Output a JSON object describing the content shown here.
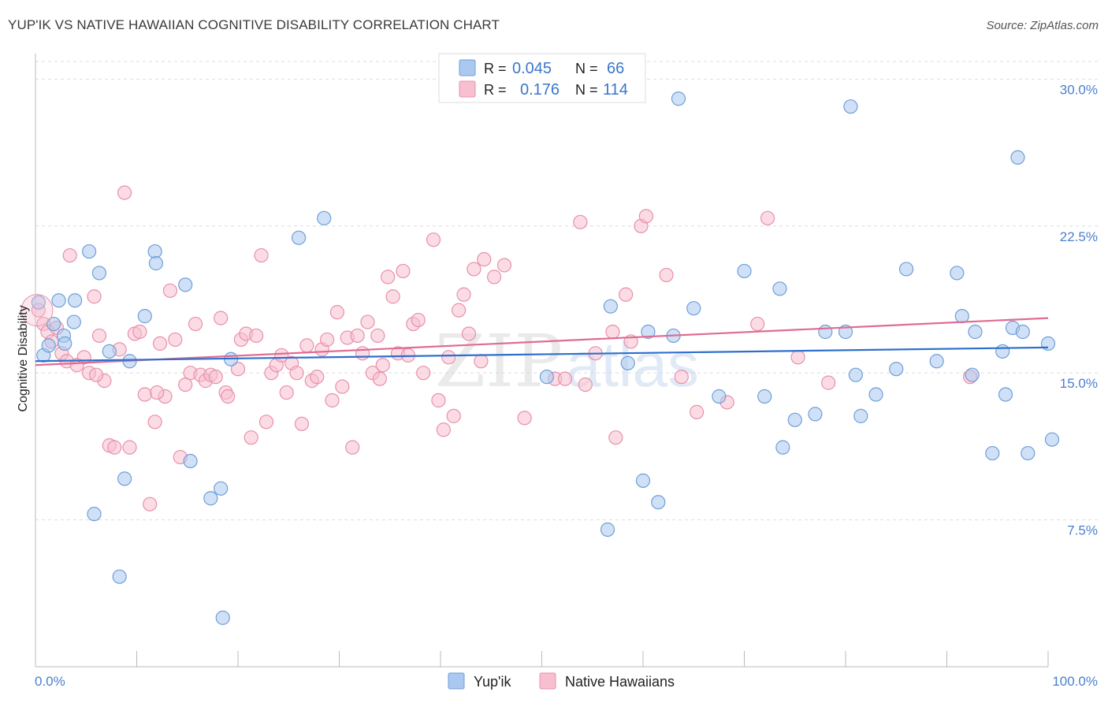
{
  "header": {
    "title": "YUP'IK VS NATIVE HAWAIIAN COGNITIVE DISABILITY CORRELATION CHART",
    "source": "Source: ZipAtlas.com"
  },
  "watermark": {
    "zip": "ZIP",
    "atlas": "atlas"
  },
  "legend": {
    "r_label": "R =",
    "n_label": "N =",
    "rows": [
      {
        "r": "0.045",
        "n": "66"
      },
      {
        "r": "0.176",
        "n": "114"
      }
    ]
  },
  "colors": {
    "yupik_fill": "#aac8f0",
    "yupik_stroke": "#6f9fd8",
    "yupik_line": "#2f6fcc",
    "hawaiian_fill": "#f7bfd0",
    "hawaiian_stroke": "#e890ab",
    "hawaiian_line": "#e06b93",
    "tick_text": "#4a7fd0",
    "grid": "#dddddd"
  },
  "chart_data": {
    "type": "scatter",
    "xlabel": "",
    "ylabel": "Cognitive Disability",
    "xlim": [
      0,
      100
    ],
    "ylim": [
      0,
      30.9
    ],
    "y_ticks": [
      7.5,
      15.0,
      22.5,
      30.0
    ],
    "y_tick_labels": [
      "7.5%",
      "15.0%",
      "22.5%",
      "30.0%"
    ],
    "x_tick_labels": [
      "0.0%",
      "100.0%"
    ],
    "grid": true,
    "legend_position": "top-center",
    "series": [
      {
        "name": "Yup'ik",
        "trend": {
          "x": [
            0,
            100
          ],
          "y": [
            15.6,
            16.3
          ]
        },
        "points": [
          [
            0.3,
            18.6
          ],
          [
            0.8,
            15.9
          ],
          [
            1.3,
            16.4
          ],
          [
            1.8,
            17.5
          ],
          [
            2.3,
            18.7
          ],
          [
            2.8,
            16.9
          ],
          [
            2.9,
            16.5
          ],
          [
            3.8,
            17.6
          ],
          [
            3.9,
            18.7
          ],
          [
            5.3,
            21.2
          ],
          [
            5.8,
            7.8
          ],
          [
            6.3,
            20.1
          ],
          [
            7.3,
            16.1
          ],
          [
            8.3,
            4.6
          ],
          [
            8.8,
            9.6
          ],
          [
            9.3,
            15.6
          ],
          [
            10.8,
            17.9
          ],
          [
            11.8,
            21.2
          ],
          [
            11.9,
            20.6
          ],
          [
            14.8,
            19.5
          ],
          [
            15.3,
            10.5
          ],
          [
            17.3,
            8.6
          ],
          [
            18.3,
            9.1
          ],
          [
            18.5,
            2.5
          ],
          [
            19.3,
            15.7
          ],
          [
            26.0,
            21.9
          ],
          [
            28.5,
            22.9
          ],
          [
            50.5,
            14.8
          ],
          [
            56.5,
            7.0
          ],
          [
            56.8,
            18.4
          ],
          [
            58.5,
            15.5
          ],
          [
            60.0,
            9.5
          ],
          [
            60.5,
            17.1
          ],
          [
            61.5,
            8.4
          ],
          [
            63.0,
            16.9
          ],
          [
            65.0,
            18.3
          ],
          [
            67.5,
            13.8
          ],
          [
            70.0,
            20.2
          ],
          [
            72.0,
            13.8
          ],
          [
            73.5,
            19.3
          ],
          [
            73.8,
            11.2
          ],
          [
            75.0,
            12.6
          ],
          [
            77.0,
            12.9
          ],
          [
            78.0,
            17.1
          ],
          [
            80.0,
            17.1
          ],
          [
            81.0,
            14.9
          ],
          [
            81.5,
            12.8
          ],
          [
            83.0,
            13.9
          ],
          [
            85.0,
            15.2
          ],
          [
            86.0,
            20.3
          ],
          [
            89.0,
            15.6
          ],
          [
            91.0,
            20.1
          ],
          [
            91.5,
            17.9
          ],
          [
            92.5,
            14.9
          ],
          [
            92.8,
            17.1
          ],
          [
            94.5,
            10.9
          ],
          [
            95.5,
            16.1
          ],
          [
            95.8,
            13.9
          ],
          [
            96.5,
            17.3
          ],
          [
            97.0,
            26.0
          ],
          [
            97.5,
            17.1
          ],
          [
            98.0,
            10.9
          ],
          [
            100.0,
            16.5
          ],
          [
            100.5,
            11.6
          ],
          [
            63.5,
            29.0
          ],
          [
            80.5,
            28.6
          ]
        ]
      },
      {
        "name": "Native Hawaiians",
        "trend": {
          "x": [
            0,
            100
          ],
          "y": [
            15.4,
            17.8
          ]
        },
        "points": [
          [
            0.3,
            18.2
          ],
          [
            0.8,
            17.5
          ],
          [
            1.2,
            17.1
          ],
          [
            1.6,
            16.6
          ],
          [
            2.1,
            17.3
          ],
          [
            2.6,
            16.0
          ],
          [
            3.1,
            15.6
          ],
          [
            3.4,
            21.0
          ],
          [
            4.1,
            15.4
          ],
          [
            4.8,
            15.8
          ],
          [
            5.3,
            15.0
          ],
          [
            5.8,
            18.9
          ],
          [
            6.3,
            16.9
          ],
          [
            6.8,
            14.6
          ],
          [
            7.3,
            11.3
          ],
          [
            7.8,
            11.2
          ],
          [
            8.3,
            16.2
          ],
          [
            8.8,
            24.2
          ],
          [
            9.3,
            11.2
          ],
          [
            9.8,
            17.0
          ],
          [
            10.3,
            17.1
          ],
          [
            10.8,
            13.9
          ],
          [
            11.3,
            8.3
          ],
          [
            11.8,
            12.5
          ],
          [
            12.3,
            16.5
          ],
          [
            12.8,
            13.8
          ],
          [
            13.3,
            19.2
          ],
          [
            13.8,
            16.7
          ],
          [
            14.3,
            10.7
          ],
          [
            14.8,
            14.4
          ],
          [
            15.3,
            15.0
          ],
          [
            15.8,
            17.5
          ],
          [
            16.3,
            14.9
          ],
          [
            16.8,
            14.6
          ],
          [
            17.3,
            14.9
          ],
          [
            17.8,
            14.8
          ],
          [
            18.3,
            17.8
          ],
          [
            18.8,
            14.0
          ],
          [
            19.0,
            13.8
          ],
          [
            20.3,
            16.7
          ],
          [
            20.8,
            17.0
          ],
          [
            21.3,
            11.7
          ],
          [
            21.8,
            16.9
          ],
          [
            22.3,
            21.0
          ],
          [
            22.8,
            12.5
          ],
          [
            23.3,
            15.0
          ],
          [
            23.8,
            15.4
          ],
          [
            24.3,
            15.9
          ],
          [
            24.8,
            14.0
          ],
          [
            25.3,
            15.5
          ],
          [
            25.8,
            15.0
          ],
          [
            26.3,
            12.4
          ],
          [
            26.8,
            16.4
          ],
          [
            27.3,
            14.6
          ],
          [
            27.8,
            14.8
          ],
          [
            28.3,
            16.2
          ],
          [
            28.8,
            16.7
          ],
          [
            29.3,
            13.6
          ],
          [
            29.8,
            18.1
          ],
          [
            30.3,
            14.3
          ],
          [
            30.8,
            16.8
          ],
          [
            31.3,
            11.2
          ],
          [
            31.8,
            16.9
          ],
          [
            32.3,
            16.0
          ],
          [
            32.8,
            17.6
          ],
          [
            33.3,
            15.0
          ],
          [
            33.8,
            16.9
          ],
          [
            34.3,
            15.4
          ],
          [
            34.8,
            19.9
          ],
          [
            35.3,
            18.9
          ],
          [
            35.8,
            16.0
          ],
          [
            36.3,
            20.2
          ],
          [
            36.8,
            15.9
          ],
          [
            37.3,
            17.5
          ],
          [
            37.8,
            17.7
          ],
          [
            38.3,
            15.0
          ],
          [
            39.3,
            21.8
          ],
          [
            39.8,
            13.6
          ],
          [
            40.3,
            12.1
          ],
          [
            40.8,
            15.8
          ],
          [
            41.3,
            12.8
          ],
          [
            41.8,
            18.2
          ],
          [
            42.3,
            19.0
          ],
          [
            42.8,
            17.0
          ],
          [
            43.3,
            20.3
          ],
          [
            44.3,
            20.8
          ],
          [
            45.3,
            19.9
          ],
          [
            46.3,
            20.5
          ],
          [
            48.3,
            12.7
          ],
          [
            51.3,
            14.7
          ],
          [
            52.3,
            14.7
          ],
          [
            53.8,
            22.7
          ],
          [
            54.3,
            14.4
          ],
          [
            55.3,
            16.0
          ],
          [
            57.3,
            11.7
          ],
          [
            58.3,
            19.0
          ],
          [
            58.8,
            16.6
          ],
          [
            59.8,
            22.5
          ],
          [
            60.3,
            23.0
          ],
          [
            62.3,
            20.0
          ],
          [
            63.8,
            14.8
          ],
          [
            65.3,
            13.0
          ],
          [
            68.3,
            13.5
          ],
          [
            71.3,
            17.5
          ],
          [
            72.3,
            22.9
          ],
          [
            75.3,
            15.8
          ],
          [
            78.3,
            14.5
          ],
          [
            92.3,
            14.8
          ],
          [
            6.0,
            14.9
          ],
          [
            12.0,
            14.0
          ],
          [
            20.0,
            15.2
          ],
          [
            34.0,
            14.7
          ],
          [
            44.0,
            15.6
          ],
          [
            57.0,
            17.1
          ]
        ]
      }
    ]
  },
  "bottom_legend": {
    "items": [
      "Yup'ik",
      "Native Hawaiians"
    ]
  }
}
